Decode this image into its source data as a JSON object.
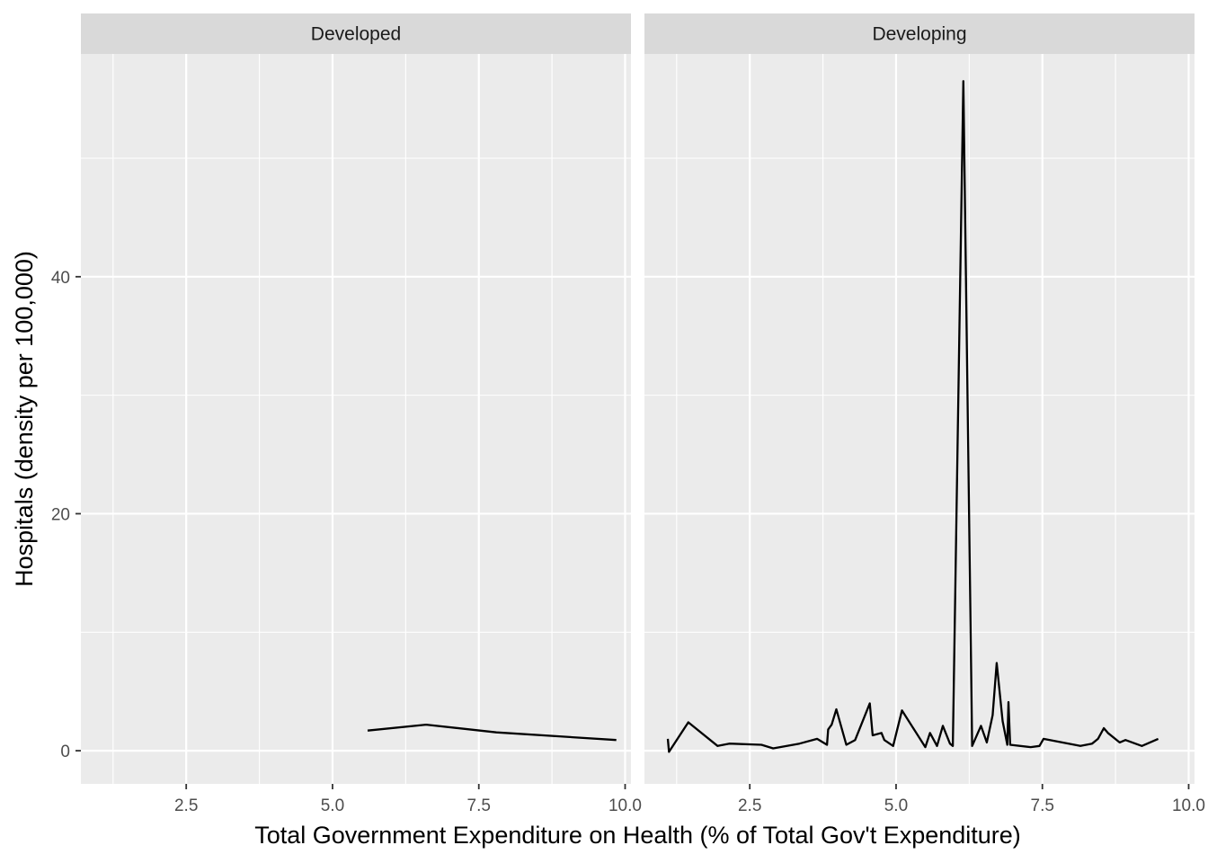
{
  "chart_data": {
    "type": "line",
    "xlabel": "Total Government Expenditure on Health (% of Total Gov't Expenditure)",
    "ylabel": "Hospitals (density per 100,000)",
    "xlim": [
      0.7,
      10.1
    ],
    "ylim": [
      -2.8,
      58.8
    ],
    "x_ticks": [
      2.5,
      5.0,
      7.5,
      10.0
    ],
    "x_tick_labels": [
      "2.5",
      "5.0",
      "7.5",
      "10.0"
    ],
    "y_ticks": [
      0,
      20,
      40
    ],
    "y_tick_labels": [
      "0",
      "20",
      "40"
    ],
    "grid": true,
    "line_color": "#000000",
    "facets": [
      {
        "name": "Developed",
        "x": [
          5.6,
          6.6,
          7.8,
          9.85
        ],
        "y": [
          1.7,
          2.2,
          1.55,
          0.9
        ]
      },
      {
        "name": "Developing",
        "x": [
          1.1,
          1.12,
          1.45,
          1.95,
          2.15,
          2.7,
          2.9,
          3.35,
          3.65,
          3.82,
          3.84,
          3.9,
          3.98,
          4.15,
          4.3,
          4.55,
          4.6,
          4.75,
          4.8,
          4.95,
          5.1,
          5.5,
          5.58,
          5.7,
          5.8,
          5.92,
          5.97,
          6.15,
          6.3,
          6.45,
          6.55,
          6.65,
          6.72,
          6.82,
          6.9,
          6.92,
          6.95,
          7.3,
          7.45,
          7.52,
          8.15,
          8.35,
          8.45,
          8.55,
          8.62,
          8.82,
          8.92,
          9.2,
          9.48
        ],
        "y": [
          1.0,
          -0.1,
          2.4,
          0.4,
          0.6,
          0.5,
          0.2,
          0.6,
          1.0,
          0.5,
          1.8,
          2.2,
          3.5,
          0.5,
          0.9,
          4.0,
          1.3,
          1.5,
          0.9,
          0.4,
          3.4,
          0.3,
          1.5,
          0.4,
          2.1,
          0.6,
          0.4,
          56.5,
          0.4,
          2.1,
          0.7,
          3.0,
          7.4,
          2.5,
          0.5,
          4.1,
          0.5,
          0.3,
          0.4,
          1.0,
          0.4,
          0.6,
          1.0,
          1.9,
          1.5,
          0.7,
          0.9,
          0.4,
          1.0
        ]
      }
    ]
  }
}
